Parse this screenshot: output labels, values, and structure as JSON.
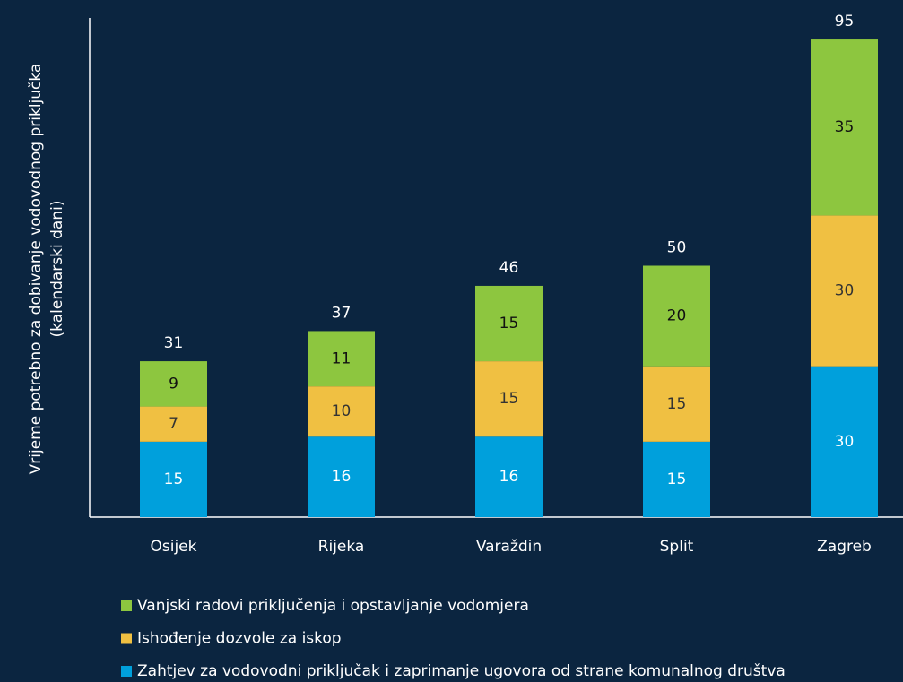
{
  "chart_data": {
    "type": "stacked_bar",
    "ylabel": [
      "Vrijeme potrebno za dobivanje vodovodnog priključka",
      "(kalendarski dani)"
    ],
    "categories": [
      "Osijek",
      "Rijeka",
      "Varaždin",
      "Split",
      "Zagreb"
    ],
    "series": [
      {
        "name": "Zahtjev za vodovodni priključak i zaprimanje ugovora od strane komunalnog društva",
        "color": "#00a0dc",
        "values": [
          15,
          16,
          16,
          15,
          30
        ]
      },
      {
        "name": "Ishođenje dozvole za iskop",
        "color": "#f0c042",
        "values": [
          7,
          10,
          15,
          15,
          30
        ]
      },
      {
        "name": "Vanjski radovi priključenja i opstavljanje vodomjera",
        "color": "#8dc63f",
        "values": [
          9,
          11,
          15,
          20,
          35
        ]
      }
    ],
    "totals": [
      31,
      37,
      46,
      50,
      95
    ],
    "ylim": [
      0,
      100
    ]
  }
}
